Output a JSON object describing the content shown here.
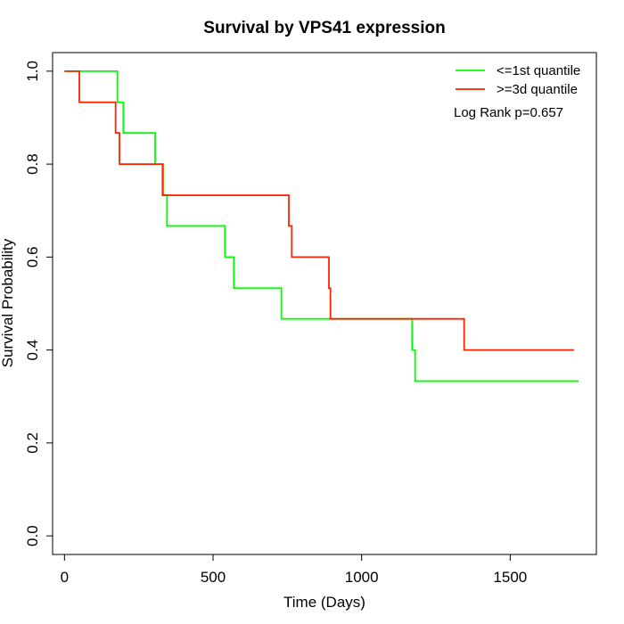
{
  "chart_data": {
    "type": "line",
    "step": true,
    "title": "Survival by VPS41 expression",
    "xlabel": "Time (Days)",
    "ylabel": "Survival Probability",
    "xlim": [
      -40,
      1790
    ],
    "ylim": [
      -0.04,
      1.04
    ],
    "xticks": [
      0,
      500,
      1000,
      1500
    ],
    "xtick_labels": [
      "0",
      "500",
      "1000",
      "1500"
    ],
    "yticks": [
      0.0,
      0.2,
      0.4,
      0.6,
      0.8,
      1.0
    ],
    "ytick_labels": [
      "0.0",
      "0.2",
      "0.4",
      "0.6",
      "0.8",
      "1.0"
    ],
    "grid": false,
    "legend_position": "top-right",
    "annotation": "Log Rank p=0.657",
    "series": [
      {
        "name": "<=1st quantile",
        "color": "#00ff00",
        "points": [
          [
            0,
            1.0
          ],
          [
            178,
            1.0
          ],
          [
            178,
            0.933
          ],
          [
            198,
            0.933
          ],
          [
            198,
            0.867
          ],
          [
            305,
            0.867
          ],
          [
            305,
            0.8
          ],
          [
            333,
            0.8
          ],
          [
            333,
            0.733
          ],
          [
            345,
            0.733
          ],
          [
            345,
            0.667
          ],
          [
            540,
            0.667
          ],
          [
            540,
            0.6
          ],
          [
            570,
            0.6
          ],
          [
            570,
            0.533
          ],
          [
            730,
            0.533
          ],
          [
            730,
            0.467
          ],
          [
            1170,
            0.467
          ],
          [
            1170,
            0.4
          ],
          [
            1180,
            0.4
          ],
          [
            1180,
            0.333
          ],
          [
            1730,
            0.333
          ]
        ]
      },
      {
        "name": ">=3d quantile",
        "color": "#ff2200",
        "points": [
          [
            0,
            1.0
          ],
          [
            50,
            1.0
          ],
          [
            50,
            0.933
          ],
          [
            172,
            0.933
          ],
          [
            172,
            0.867
          ],
          [
            185,
            0.867
          ],
          [
            185,
            0.8
          ],
          [
            330,
            0.8
          ],
          [
            330,
            0.733
          ],
          [
            755,
            0.733
          ],
          [
            755,
            0.667
          ],
          [
            765,
            0.667
          ],
          [
            765,
            0.6
          ],
          [
            890,
            0.6
          ],
          [
            890,
            0.533
          ],
          [
            895,
            0.533
          ],
          [
            895,
            0.467
          ],
          [
            1345,
            0.467
          ],
          [
            1345,
            0.4
          ],
          [
            1715,
            0.4
          ]
        ]
      }
    ]
  }
}
